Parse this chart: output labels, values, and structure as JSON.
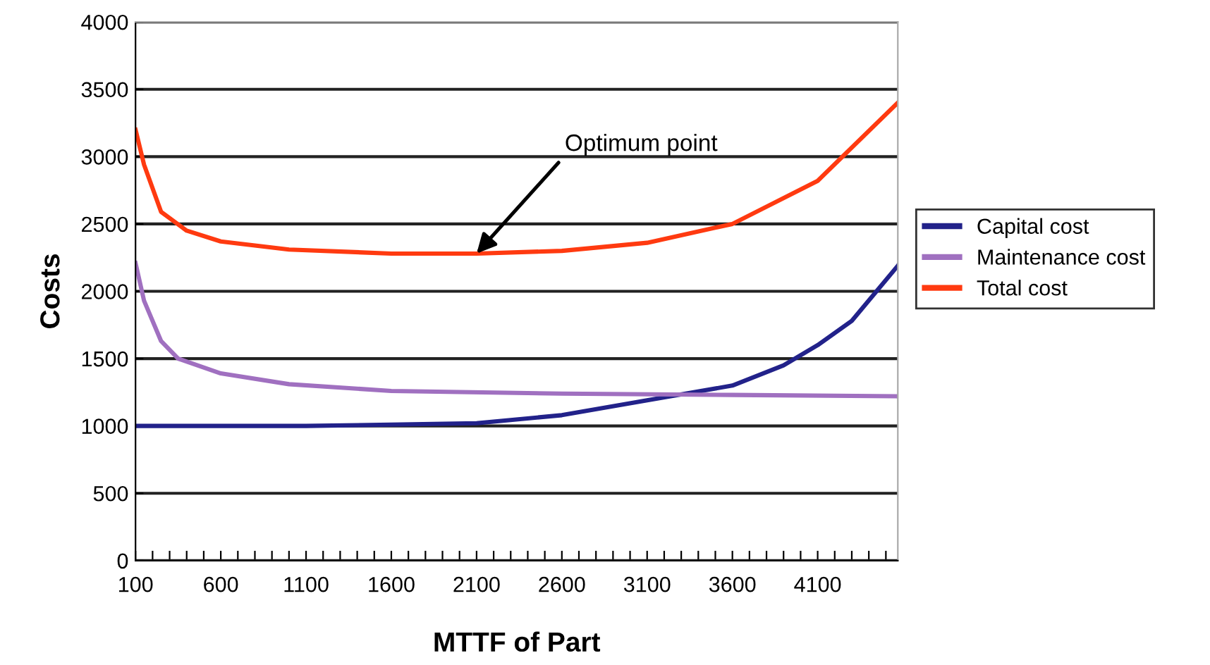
{
  "chart_data": {
    "type": "line",
    "xlabel": "MTTF of Part",
    "ylabel": "Costs",
    "xlim": [
      100,
      4570
    ],
    "ylim": [
      0,
      4000
    ],
    "xticks": [
      100,
      {
        "value": 200,
        "label": null
      },
      {
        "value": 300,
        "label": null
      },
      {
        "value": 400,
        "label": null
      },
      {
        "value": 500,
        "label": null
      },
      600,
      {
        "value": 700,
        "label": null
      },
      {
        "value": 800,
        "label": null
      },
      {
        "value": 900,
        "label": null
      },
      {
        "value": 1000,
        "label": null
      },
      1100,
      {
        "value": 1200,
        "label": null
      },
      {
        "value": 1300,
        "label": null
      },
      {
        "value": 1400,
        "label": null
      },
      {
        "value": 1500,
        "label": null
      },
      1600,
      {
        "value": 1700,
        "label": null
      },
      {
        "value": 1800,
        "label": null
      },
      {
        "value": 1900,
        "label": null
      },
      {
        "value": 2000,
        "label": null
      },
      2100,
      {
        "value": 2200,
        "label": null
      },
      {
        "value": 2300,
        "label": null
      },
      {
        "value": 2400,
        "label": null
      },
      {
        "value": 2500,
        "label": null
      },
      2600,
      {
        "value": 2700,
        "label": null
      },
      {
        "value": 2800,
        "label": null
      },
      {
        "value": 2900,
        "label": null
      },
      {
        "value": 3000,
        "label": null
      },
      3100,
      {
        "value": 3200,
        "label": null
      },
      {
        "value": 3300,
        "label": null
      },
      {
        "value": 3400,
        "label": null
      },
      {
        "value": 3500,
        "label": null
      },
      3600,
      {
        "value": 3700,
        "label": null
      },
      {
        "value": 3800,
        "label": null
      },
      {
        "value": 3900,
        "label": null
      },
      {
        "value": 4000,
        "label": null
      },
      4100,
      {
        "value": 4200,
        "label": null
      },
      {
        "value": 4300,
        "label": null
      },
      {
        "value": 4400,
        "label": null
      },
      {
        "value": 4500,
        "label": null
      }
    ],
    "yticks": [
      0,
      500,
      1000,
      1500,
      2000,
      2500,
      3000,
      3500,
      4000
    ],
    "grid": "y",
    "legend": "right",
    "marker": "none",
    "line_style": "solid",
    "series": [
      {
        "name": "Capital cost",
        "color": "#22228a",
        "x": [
          100,
          600,
          1100,
          1600,
          2100,
          2600,
          3100,
          3600,
          3900,
          4100,
          4300,
          4570
        ],
        "values": [
          1000,
          1000,
          1000,
          1010,
          1020,
          1080,
          1190,
          1300,
          1450,
          1600,
          1780,
          2190
        ]
      },
      {
        "name": "Maintenance cost",
        "color": "#a070c0",
        "x": [
          100,
          150,
          250,
          350,
          600,
          1000,
          1600,
          2600,
          3600,
          4570
        ],
        "values": [
          2210,
          1930,
          1630,
          1500,
          1390,
          1310,
          1260,
          1240,
          1230,
          1220
        ]
      },
      {
        "name": "Total cost",
        "color": "#ff3a10",
        "x": [
          100,
          150,
          250,
          400,
          600,
          1000,
          1600,
          2100,
          2600,
          3100,
          3600,
          4100,
          4570
        ],
        "values": [
          3200,
          2940,
          2590,
          2450,
          2370,
          2310,
          2280,
          2280,
          2300,
          2360,
          2500,
          2820,
          3400
        ]
      }
    ],
    "annotations": [
      {
        "text": "Optimum point",
        "x": 2100,
        "y": 2280
      }
    ]
  }
}
